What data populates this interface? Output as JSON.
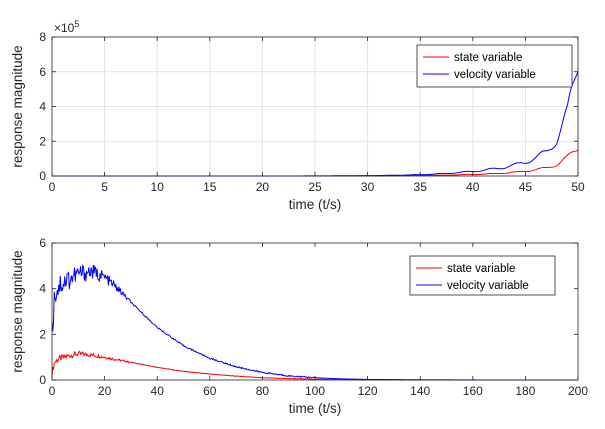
{
  "chart_data": [
    {
      "type": "line",
      "xlabel": "time (t/s)",
      "ylabel": "response magnitude",
      "xlim": [
        0,
        50
      ],
      "ylim": [
        0,
        8
      ],
      "y_exponent_label": "×10",
      "y_exponent_power": "5",
      "y_scale_factor": 100000,
      "xticks": [
        0,
        5,
        10,
        15,
        20,
        25,
        30,
        35,
        40,
        45,
        50
      ],
      "yticks": [
        0,
        2,
        4,
        6,
        8
      ],
      "grid": true,
      "legend_position": "top-right",
      "series": [
        {
          "name": "state variable",
          "color": "#ff0000",
          "x": [
            0,
            5,
            10,
            15,
            20,
            25,
            30,
            32,
            34,
            36,
            38,
            40,
            41,
            42,
            43,
            44,
            45,
            46,
            47,
            48,
            49,
            50
          ],
          "y": [
            0,
            0,
            0,
            0,
            0.0005,
            0.002,
            0.008,
            0.013,
            0.022,
            0.036,
            0.058,
            0.09,
            0.11,
            0.135,
            0.17,
            0.21,
            0.28,
            0.36,
            0.47,
            0.66,
            1.05,
            1.7
          ]
        },
        {
          "name": "velocity variable",
          "color": "#0000ff",
          "x": [
            0,
            5,
            10,
            15,
            20,
            25,
            30,
            32,
            34,
            36,
            38,
            40,
            41,
            42,
            43,
            44,
            45,
            46,
            47,
            48,
            49,
            50
          ],
          "y": [
            0,
            0,
            0,
            0,
            0.001,
            0.005,
            0.02,
            0.035,
            0.06,
            0.1,
            0.165,
            0.265,
            0.33,
            0.41,
            0.5,
            0.63,
            0.8,
            1.05,
            1.38,
            2.1,
            3.6,
            6.9
          ]
        }
      ]
    },
    {
      "type": "line",
      "xlabel": "time (t/s)",
      "ylabel": "response magnitude",
      "xlim": [
        0,
        200
      ],
      "ylim": [
        0,
        6
      ],
      "xticks": [
        0,
        20,
        40,
        60,
        80,
        100,
        120,
        140,
        160,
        180,
        200
      ],
      "yticks": [
        0,
        2,
        4,
        6
      ],
      "grid": false,
      "legend_position": "top-right",
      "series": [
        {
          "name": "state variable",
          "color": "#ff0000",
          "x": [
            0,
            1,
            3,
            6,
            10,
            15,
            20,
            25,
            30,
            40,
            50,
            60,
            70,
            80,
            90,
            100,
            110,
            120,
            140,
            160,
            180,
            200
          ],
          "y": [
            0.3,
            0.8,
            0.95,
            1.05,
            1.15,
            1.1,
            1.0,
            0.88,
            0.78,
            0.55,
            0.38,
            0.26,
            0.17,
            0.1,
            0.06,
            0.035,
            0.02,
            0.012,
            0.004,
            0.002,
            0.001,
            0.0005
          ]
        },
        {
          "name": "velocity variable",
          "color": "#0000ff",
          "x": [
            0,
            1,
            3,
            6,
            10,
            15,
            20,
            25,
            30,
            35,
            40,
            50,
            60,
            70,
            80,
            90,
            100,
            110,
            120,
            140,
            160,
            180,
            200
          ],
          "y": [
            2.0,
            3.8,
            4.2,
            4.4,
            4.65,
            4.75,
            4.5,
            4.0,
            3.4,
            2.85,
            2.3,
            1.5,
            0.95,
            0.58,
            0.33,
            0.18,
            0.1,
            0.05,
            0.025,
            0.008,
            0.003,
            0.001,
            0.0005
          ]
        }
      ]
    }
  ]
}
